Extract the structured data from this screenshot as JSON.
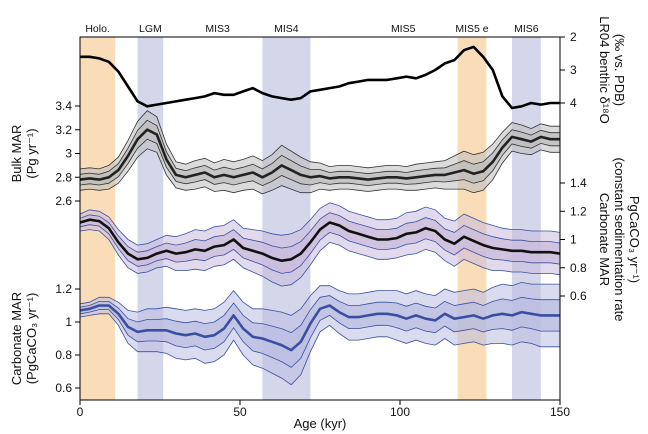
{
  "chart_data": {
    "type": "line",
    "x_axis": {
      "label": "Age (kyr)",
      "range": [
        0,
        150
      ],
      "ticks": [
        0,
        50,
        100,
        150
      ]
    },
    "periods": [
      {
        "label": "Holo.",
        "x0": 0,
        "x1": 11,
        "color": "#f9dcb8"
      },
      {
        "label": "LGM",
        "x0": 18,
        "x1": 26,
        "color": "#d4d6ea"
      },
      {
        "label": "MIS3",
        "x0": 29,
        "x1": 57,
        "color": null
      },
      {
        "label": "MIS4",
        "x0": 57,
        "x1": 72,
        "color": "#d4d6ea"
      },
      {
        "label": "MIS5",
        "x0": 72,
        "x1": 130,
        "color": null
      },
      {
        "label": "MIS5 e",
        "x0": 118,
        "x1": 127,
        "color": "#f9dcb8"
      },
      {
        "label": "MIS6",
        "x0": 135,
        "x1": 144,
        "color": "#d4d6ea"
      }
    ],
    "panels": [
      {
        "id": "lr04",
        "axis_side": "right",
        "ylabel": "LR04 benthic δ18O (‰ vs. PDB)",
        "ylabel_lines": [
          "LR04 benthic δ¹⁸O",
          "(‰ vs. PDB)"
        ],
        "ticks": [
          2,
          3,
          4
        ],
        "inverted": true,
        "line_color": "#000000",
        "x": [
          0,
          3,
          6,
          9,
          12,
          15,
          18,
          21,
          24,
          27,
          30,
          33,
          36,
          39,
          42,
          45,
          48,
          51,
          54,
          57,
          60,
          63,
          66,
          69,
          72,
          75,
          78,
          81,
          84,
          87,
          90,
          93,
          96,
          99,
          102,
          105,
          108,
          111,
          114,
          117,
          120,
          123,
          126,
          129,
          132,
          135,
          138,
          141,
          144,
          147,
          150
        ],
        "y": [
          2.6,
          2.6,
          2.65,
          2.75,
          3.05,
          3.5,
          3.95,
          4.1,
          4.05,
          4.0,
          3.95,
          3.9,
          3.85,
          3.8,
          3.7,
          3.75,
          3.75,
          3.65,
          3.55,
          3.7,
          3.8,
          3.85,
          3.9,
          3.85,
          3.65,
          3.6,
          3.55,
          3.5,
          3.4,
          3.35,
          3.3,
          3.3,
          3.3,
          3.25,
          3.2,
          3.25,
          3.15,
          3.0,
          2.8,
          2.7,
          2.4,
          2.3,
          2.6,
          3.0,
          3.8,
          4.15,
          4.1,
          4.0,
          4.05,
          4.0,
          4.0
        ]
      },
      {
        "id": "bulk",
        "axis_side": "left",
        "ylabel_lines": [
          "Bulk MAR",
          "(Pg yr⁻¹)"
        ],
        "ticks": [
          2.6,
          2.8,
          3,
          3.2,
          3.4
        ],
        "line_color": "#222222",
        "band_color": "#bdbdbd",
        "x": [
          0,
          3,
          6,
          9,
          12,
          15,
          18,
          21,
          24,
          27,
          30,
          33,
          36,
          39,
          42,
          45,
          48,
          51,
          54,
          57,
          60,
          63,
          66,
          69,
          72,
          75,
          78,
          81,
          84,
          87,
          90,
          93,
          96,
          99,
          102,
          105,
          108,
          111,
          114,
          117,
          120,
          123,
          126,
          129,
          132,
          135,
          138,
          141,
          144,
          147,
          150
        ],
        "y": [
          2.78,
          2.79,
          2.78,
          2.8,
          2.86,
          2.98,
          3.12,
          3.2,
          3.16,
          2.95,
          2.82,
          2.8,
          2.82,
          2.84,
          2.8,
          2.82,
          2.8,
          2.82,
          2.84,
          2.8,
          2.84,
          2.9,
          2.86,
          2.82,
          2.8,
          2.81,
          2.79,
          2.8,
          2.8,
          2.79,
          2.78,
          2.79,
          2.8,
          2.8,
          2.79,
          2.8,
          2.81,
          2.82,
          2.82,
          2.84,
          2.86,
          2.83,
          2.85,
          2.93,
          3.05,
          3.14,
          3.12,
          3.1,
          3.14,
          3.12,
          3.12
        ],
        "half_width": [
          0.09,
          0.09,
          0.09,
          0.1,
          0.11,
          0.13,
          0.15,
          0.16,
          0.15,
          0.13,
          0.11,
          0.11,
          0.12,
          0.12,
          0.12,
          0.13,
          0.13,
          0.13,
          0.14,
          0.14,
          0.15,
          0.17,
          0.16,
          0.15,
          0.13,
          0.11,
          0.1,
          0.1,
          0.1,
          0.1,
          0.1,
          0.1,
          0.1,
          0.1,
          0.1,
          0.11,
          0.11,
          0.11,
          0.12,
          0.14,
          0.16,
          0.16,
          0.16,
          0.15,
          0.13,
          0.12,
          0.12,
          0.11,
          0.11,
          0.11,
          0.11
        ]
      },
      {
        "id": "carb_const",
        "axis_side": "right",
        "ylabel_lines": [
          "Carbonate MAR",
          "(constant sedimentation rate",
          "PgCaCO₃ yr⁻¹)"
        ],
        "ticks": [
          0.6,
          0.8,
          1,
          1.2,
          1.4
        ],
        "line_color": "#111111",
        "band_color": "#c9bbdc",
        "x": [
          0,
          3,
          6,
          9,
          12,
          15,
          18,
          21,
          24,
          27,
          30,
          33,
          36,
          39,
          42,
          45,
          48,
          51,
          54,
          57,
          60,
          63,
          66,
          69,
          72,
          75,
          78,
          81,
          84,
          87,
          90,
          93,
          96,
          99,
          102,
          105,
          108,
          111,
          114,
          117,
          120,
          123,
          126,
          129,
          132,
          135,
          138,
          141,
          144,
          147,
          150
        ],
        "y": [
          1.12,
          1.14,
          1.13,
          1.08,
          0.98,
          0.9,
          0.86,
          0.87,
          0.9,
          0.92,
          0.9,
          0.91,
          0.93,
          0.92,
          0.95,
          0.96,
          1.0,
          0.94,
          0.92,
          0.9,
          0.87,
          0.85,
          0.86,
          0.9,
          0.98,
          1.07,
          1.12,
          1.1,
          1.06,
          1.04,
          1.02,
          1.0,
          1.0,
          1.01,
          1.04,
          1.05,
          1.08,
          1.06,
          1.0,
          0.97,
          1.02,
          0.99,
          0.96,
          0.94,
          0.93,
          0.92,
          0.92,
          0.91,
          0.91,
          0.91,
          0.9
        ],
        "half_width": [
          0.06,
          0.07,
          0.07,
          0.08,
          0.09,
          0.1,
          0.1,
          0.1,
          0.1,
          0.11,
          0.12,
          0.13,
          0.14,
          0.14,
          0.14,
          0.14,
          0.14,
          0.14,
          0.15,
          0.16,
          0.17,
          0.18,
          0.18,
          0.17,
          0.16,
          0.15,
          0.14,
          0.14,
          0.14,
          0.14,
          0.14,
          0.14,
          0.14,
          0.14,
          0.15,
          0.15,
          0.15,
          0.15,
          0.15,
          0.16,
          0.16,
          0.16,
          0.16,
          0.16,
          0.15,
          0.15,
          0.15,
          0.15,
          0.15,
          0.15,
          0.15
        ]
      },
      {
        "id": "carb",
        "axis_side": "left",
        "ylabel_lines": [
          "Carbonate MAR",
          "(PgCaCO₃ yr⁻¹)"
        ],
        "ticks": [
          0.6,
          0.8,
          1,
          1.2
        ],
        "line_color": "#3b4fa2",
        "band_color": "#b9bde0",
        "x": [
          0,
          3,
          6,
          9,
          12,
          15,
          18,
          21,
          24,
          27,
          30,
          33,
          36,
          39,
          42,
          45,
          48,
          51,
          54,
          57,
          60,
          63,
          66,
          69,
          72,
          75,
          78,
          81,
          84,
          87,
          90,
          93,
          96,
          99,
          102,
          105,
          108,
          111,
          114,
          117,
          120,
          123,
          126,
          129,
          132,
          135,
          138,
          141,
          144,
          147,
          150
        ],
        "y": [
          1.07,
          1.08,
          1.1,
          1.1,
          1.05,
          0.97,
          0.94,
          0.95,
          0.95,
          0.95,
          0.93,
          0.92,
          0.93,
          0.91,
          0.92,
          0.96,
          1.04,
          0.96,
          0.91,
          0.9,
          0.88,
          0.86,
          0.83,
          0.88,
          0.99,
          1.08,
          1.1,
          1.06,
          1.03,
          1.03,
          1.04,
          1.05,
          1.05,
          1.04,
          1.02,
          1.04,
          1.02,
          1.01,
          1.05,
          1.02,
          1.03,
          1.04,
          1.02,
          1.04,
          1.05,
          1.04,
          1.06,
          1.05,
          1.04,
          1.04,
          1.04
        ],
        "half_width": [
          0.04,
          0.04,
          0.05,
          0.05,
          0.07,
          0.1,
          0.12,
          0.13,
          0.13,
          0.14,
          0.15,
          0.15,
          0.15,
          0.16,
          0.16,
          0.16,
          0.15,
          0.16,
          0.17,
          0.18,
          0.19,
          0.2,
          0.21,
          0.2,
          0.17,
          0.14,
          0.12,
          0.13,
          0.14,
          0.14,
          0.14,
          0.14,
          0.14,
          0.15,
          0.15,
          0.15,
          0.15,
          0.15,
          0.15,
          0.16,
          0.16,
          0.16,
          0.16,
          0.17,
          0.18,
          0.18,
          0.18,
          0.18,
          0.19,
          0.19,
          0.19
        ]
      }
    ]
  }
}
